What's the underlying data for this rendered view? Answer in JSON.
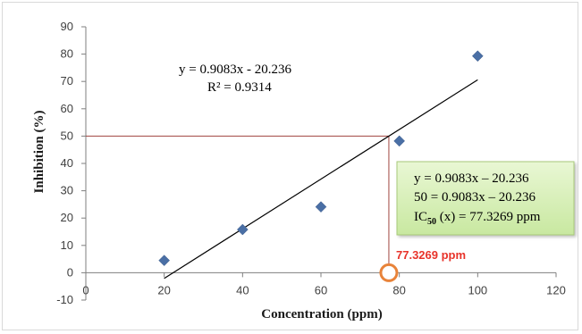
{
  "chart_data": {
    "type": "scatter",
    "xlabel": "Concentration (ppm)",
    "ylabel": "Inhibition (%)",
    "xlim": [
      0,
      120
    ],
    "ylim": [
      -10,
      90
    ],
    "x_ticks": [
      "0",
      "20",
      "40",
      "60",
      "80",
      "100",
      "120"
    ],
    "y_ticks": [
      "-10",
      "0",
      "10",
      "20",
      "30",
      "40",
      "50",
      "60",
      "70",
      "80",
      "90"
    ],
    "grid": false,
    "marker_color": "#4a6fa5",
    "series": [
      {
        "x": [
          20,
          40,
          60,
          80,
          100
        ],
        "y": [
          4.5,
          15.8,
          24.1,
          48.2,
          79.3
        ]
      }
    ],
    "trendline": {
      "slope": 0.9083,
      "intercept": -20.236,
      "x_range": [
        20,
        100
      ],
      "color": "#000000",
      "equation": "y = 0.9083x - 20.236",
      "r_squared": "R² = 0.9314"
    },
    "reference": {
      "y": 50,
      "x": 77.3269,
      "color": "#a0433f",
      "point_color": "#e8833a",
      "label": "77.3269 ppm",
      "label_color": "#e8332a"
    },
    "annotation_box": {
      "line1": "y = 0.9083x – 20.236",
      "line2": "50 = 0.9083x – 20.236",
      "line3_prefix": "IC",
      "line3_sub": "50",
      "line3_suffix": " (x) = 77.3269 ppm",
      "fill": "#d9f0b8",
      "border": "#a8c97a"
    }
  }
}
